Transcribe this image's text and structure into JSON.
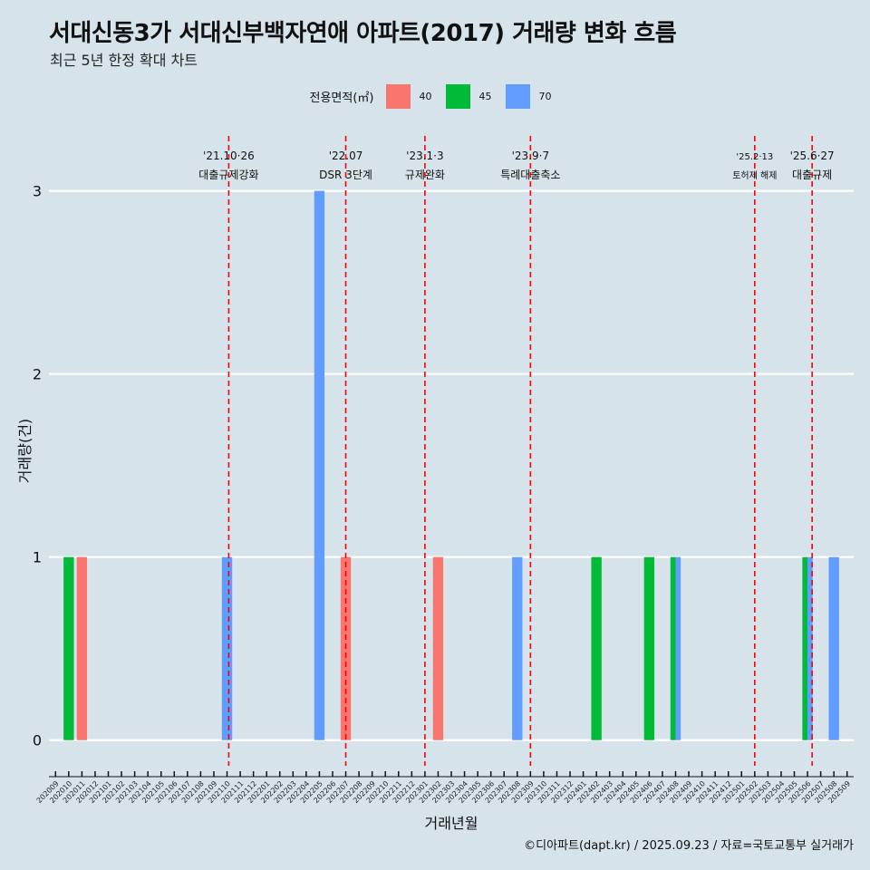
{
  "title": "서대신동3가 서대신부백자연애 아파트(2017) 거래량 변화 흐름",
  "subtitle": "최근 5년 한정 확대 차트",
  "caption": "©디아파트(dapt.kr) / 2025.09.23 / 자료=국토교통부 실거래가",
  "legend": {
    "title": "전용면적(㎡)",
    "items": [
      {
        "label": "40",
        "color": "#f8766d"
      },
      {
        "label": "45",
        "color": "#00ba38"
      },
      {
        "label": "70",
        "color": "#619cff"
      }
    ]
  },
  "chart_data": {
    "type": "bar",
    "xlabel": "거래년월",
    "ylabel": "거래량(건)",
    "ylim": [
      -0.14,
      3.3
    ],
    "yticks": [
      0,
      1,
      2,
      3
    ],
    "categories": [
      "202009",
      "202010",
      "202011",
      "202012",
      "202101",
      "202102",
      "202103",
      "202104",
      "202105",
      "202106",
      "202107",
      "202108",
      "202109",
      "202110",
      "202111",
      "202112",
      "202201",
      "202202",
      "202203",
      "202204",
      "202205",
      "202206",
      "202207",
      "202208",
      "202209",
      "202210",
      "202211",
      "202212",
      "202301",
      "202302",
      "202303",
      "202304",
      "202305",
      "202306",
      "202307",
      "202308",
      "202309",
      "202310",
      "202311",
      "202312",
      "202401",
      "202402",
      "202403",
      "202404",
      "202405",
      "202406",
      "202407",
      "202408",
      "202409",
      "202410",
      "202411",
      "202412",
      "202501",
      "202502",
      "202503",
      "202504",
      "202505",
      "202506",
      "202507",
      "202508",
      "202509"
    ],
    "series": [
      {
        "name": "40",
        "color": "#f8766d",
        "points": [
          {
            "x": "202011",
            "y": 1
          },
          {
            "x": "202207",
            "y": 1
          },
          {
            "x": "202302",
            "y": 1
          }
        ]
      },
      {
        "name": "45",
        "color": "#00ba38",
        "points": [
          {
            "x": "202010",
            "y": 1
          },
          {
            "x": "202402",
            "y": 1
          },
          {
            "x": "202406",
            "y": 1
          },
          {
            "x": "202408",
            "y": 1
          },
          {
            "x": "202506",
            "y": 1
          }
        ]
      },
      {
        "name": "70",
        "color": "#619cff",
        "points": [
          {
            "x": "202110",
            "y": 1
          },
          {
            "x": "202205",
            "y": 3
          },
          {
            "x": "202308",
            "y": 1
          },
          {
            "x": "202408",
            "y": 1
          },
          {
            "x": "202506",
            "y": 1
          },
          {
            "x": "202508",
            "y": 1
          }
        ]
      }
    ],
    "annotations": [
      {
        "x": "202110",
        "offset": 0.13,
        "date": "'21.10·26",
        "label": "대출규제강화",
        "small": false
      },
      {
        "x": "202207",
        "offset": 0.0,
        "date": "'22.07",
        "label": "DSR 3단계",
        "small": false
      },
      {
        "x": "202301",
        "offset": 0.0,
        "date": "'23.1·3",
        "label": "규제완화",
        "small": false
      },
      {
        "x": "202309",
        "offset": 0.0,
        "date": "'23.9·7",
        "label": "특례대출축소",
        "small": false
      },
      {
        "x": "202502",
        "offset": 0.0,
        "date": "'25.2·13",
        "label": "토허제 해제",
        "small": true
      },
      {
        "x": "202506",
        "offset": 0.35,
        "date": "'25.6·27",
        "label": "대출규제",
        "small": false
      }
    ]
  }
}
